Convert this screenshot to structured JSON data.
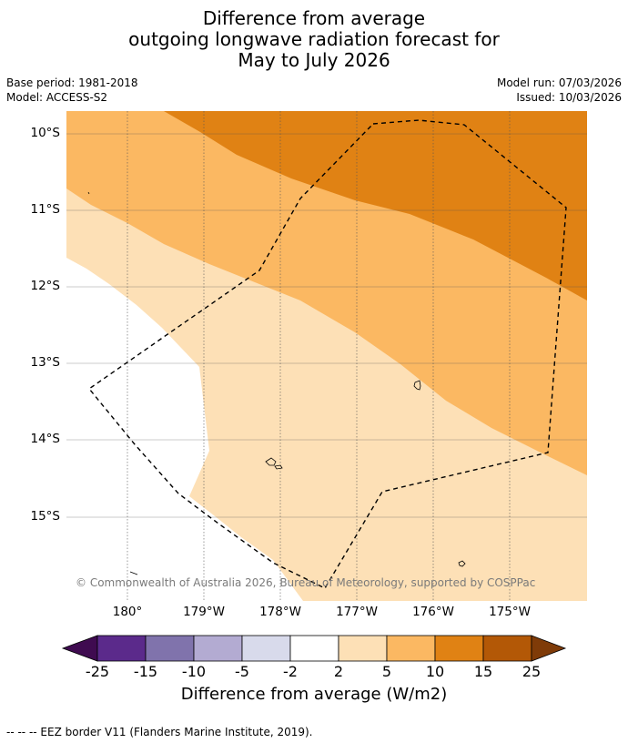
{
  "title": {
    "line1": "Difference from average",
    "line2": "outgoing longwave radiation forecast for",
    "line3": "May to July 2026"
  },
  "meta": {
    "base_period": "Base period: 1981-2018",
    "model": "Model: ACCESS-S2",
    "model_run": "Model run: 07/03/2026",
    "issued": "Issued: 10/03/2026"
  },
  "map": {
    "lat_labels": [
      "10°S",
      "11°S",
      "12°S",
      "13°S",
      "14°S",
      "15°S"
    ],
    "lon_labels": [
      "180°",
      "179°W",
      "178°W",
      "177°W",
      "176°W",
      "175°W"
    ],
    "copyright": "© Commonwealth of Australia 2026, Bureau of Meteorology, supported by COSPPac",
    "colors": {
      "band_2_5": "#fde0b6",
      "band_5_10": "#fbb862",
      "band_10_15": "#e08214",
      "neutral": "#ffffff"
    }
  },
  "colorbar": {
    "ticks": [
      "-25",
      "-15",
      "-10",
      "-5",
      "-2",
      "2",
      "5",
      "10",
      "15",
      "25"
    ],
    "colors": [
      "#3f0b50",
      "#5b2a8b",
      "#8073ac",
      "#b3abd2",
      "#d8daeb",
      "#ffffff",
      "#fde0b6",
      "#fbb862",
      "#e08214",
      "#b35806",
      "#7f3b08"
    ],
    "label": "Difference from average (W/m2)"
  },
  "legend_note": "--  --  -- EEZ border V11 (Flanders Marine Institute, 2019)."
}
